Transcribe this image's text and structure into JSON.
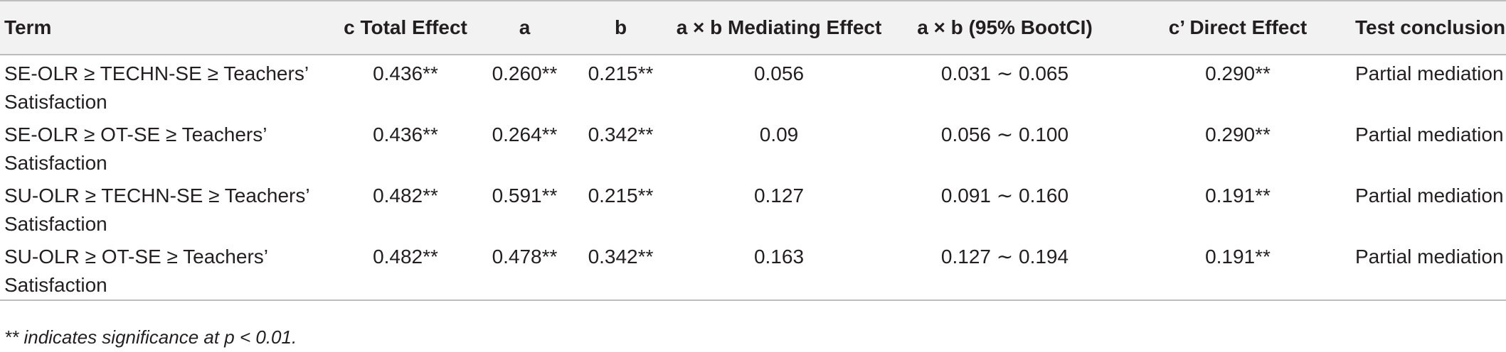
{
  "table": {
    "headers": [
      "Term",
      "c Total Effect",
      "a",
      "b",
      "a × b Mediating Effect",
      "a × b (95% BootCI)",
      "c’ Direct Effect",
      "Test conclusion"
    ],
    "rows": [
      {
        "term": "SE-OLR ≥ TECHN-SE ≥ Teachers’ Satisfaction",
        "c_total": "0.436**",
        "a": "0.260**",
        "b": "0.215**",
        "mediating": "0.056",
        "boot_ci": "0.031 ∼ 0.065",
        "direct": "0.290**",
        "conclusion": "Partial mediation"
      },
      {
        "term": "SE-OLR ≥ OT-SE ≥ Teachers’ Satisfaction",
        "c_total": "0.436**",
        "a": "0.264**",
        "b": "0.342**",
        "mediating": "0.09",
        "boot_ci": "0.056 ∼ 0.100",
        "direct": "0.290**",
        "conclusion": "Partial mediation"
      },
      {
        "term": "SU-OLR ≥ TECHN-SE ≥ Teachers’ Satisfaction",
        "c_total": "0.482**",
        "a": "0.591**",
        "b": "0.215**",
        "mediating": "0.127",
        "boot_ci": "0.091 ∼ 0.160",
        "direct": "0.191**",
        "conclusion": "Partial mediation"
      },
      {
        "term": "SU-OLR ≥ OT-SE ≥ Teachers’ Satisfaction",
        "c_total": "0.482**",
        "a": "0.478**",
        "b": "0.342**",
        "mediating": "0.163",
        "boot_ci": "0.127 ∼ 0.194",
        "direct": "0.191**",
        "conclusion": "Partial mediation"
      }
    ]
  },
  "footnote": "** indicates significance at p < 0.01."
}
